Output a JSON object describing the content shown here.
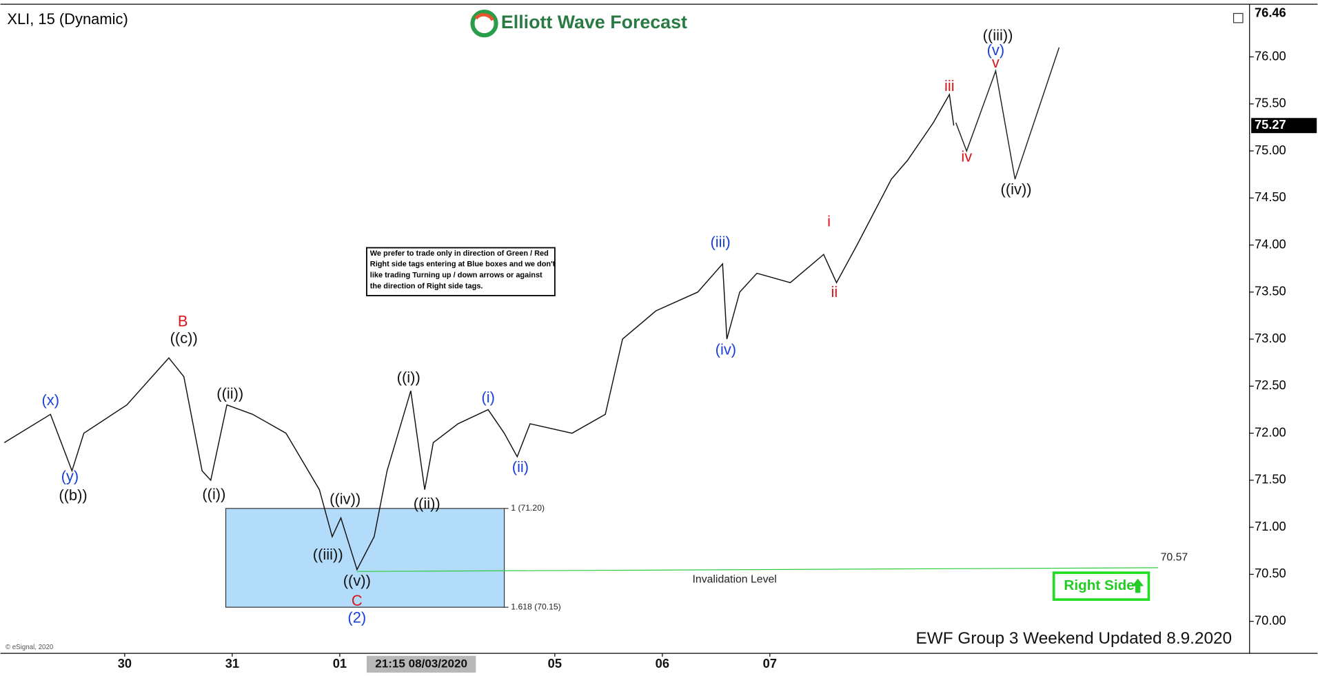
{
  "chart_data": {
    "type": "line",
    "title": "XLI, 15 (Dynamic)",
    "brand": "Elliott Wave Forecast",
    "xlim": [
      -1.156,
      10.461
    ],
    "ylim": [
      69.66,
      76.56
    ],
    "xticks": [
      {
        "value": 0,
        "label": "30"
      },
      {
        "value": 1,
        "label": "31"
      },
      {
        "value": 2,
        "label": "01"
      },
      {
        "value": 4,
        "label": "05"
      },
      {
        "value": 5,
        "label": "06"
      },
      {
        "value": 6,
        "label": "07"
      }
    ],
    "yticks": [
      {
        "value": 70,
        "label": "70.00"
      },
      {
        "value": 70.5,
        "label": "70.50"
      },
      {
        "value": 71,
        "label": "71.00"
      },
      {
        "value": 71.5,
        "label": "71.50"
      },
      {
        "value": 72,
        "label": "72.00"
      },
      {
        "value": 72.5,
        "label": "72.50"
      },
      {
        "value": 73,
        "label": "73.00"
      },
      {
        "value": 73.5,
        "label": "73.50"
      },
      {
        "value": 74,
        "label": "74.00"
      },
      {
        "value": 74.5,
        "label": "74.50"
      },
      {
        "value": 75,
        "label": "75.00"
      },
      {
        "value": 75.5,
        "label": "75.50"
      },
      {
        "value": 76,
        "label": "76.00"
      }
    ],
    "axis_markers": [
      76.46,
      75.27
    ],
    "series": [
      {
        "color": "#111111",
        "x": [
          -1.12,
          -0.69,
          -0.49,
          -0.38,
          0.02,
          0.41,
          0.55,
          0.72,
          0.8,
          0.95,
          1.19,
          1.5,
          1.81,
          1.93,
          2.01,
          2.16,
          2.32,
          2.44,
          2.66,
          2.79,
          2.87,
          3.1,
          3.38,
          3.53,
          3.65,
          3.77,
          4.16,
          4.47,
          4.63,
          4.94,
          5.33,
          5.56,
          5.6,
          5.72,
          5.88,
          6.19,
          6.5,
          6.62,
          6.81,
          7.13,
          7.28,
          7.52,
          7.67,
          7.71
        ],
        "values": [
          71.9,
          72.2,
          71.6,
          72.0,
          72.3,
          72.8,
          72.6,
          71.6,
          71.5,
          72.3,
          72.2,
          72.0,
          71.4,
          70.9,
          71.1,
          70.55,
          70.9,
          71.6,
          72.45,
          71.4,
          71.9,
          72.1,
          72.25,
          72.0,
          71.75,
          72.1,
          72.0,
          72.2,
          73.0,
          73.3,
          73.5,
          73.8,
          73.0,
          73.5,
          73.7,
          73.6,
          73.9,
          73.6,
          74.0,
          74.7,
          74.9,
          75.3,
          75.6,
          75.27
        ]
      },
      {
        "color": "#222222",
        "x": [
          7.73,
          7.83,
          8.1,
          8.28,
          8.69
        ],
        "values": [
          75.3,
          75.0,
          75.85,
          74.7,
          76.1
        ]
      }
    ],
    "target_box": {
      "x": [
        0.94,
        3.53
      ],
      "levels": [
        71.2,
        70.15
      ],
      "labels": [
        "1 (71.20)",
        "1.618 (70.15)"
      ],
      "color": "#b3dcfa"
    },
    "invalidation": {
      "label": "Invalidation Level",
      "x": [
        2.16,
        9.61
      ],
      "values": [
        70.53,
        70.57
      ],
      "color": "#2ecc40"
    },
    "annotations": [
      {
        "text": "(x)",
        "color": "#1a3fd6",
        "x": -0.69,
        "y": 72.34
      },
      {
        "text": "(y)",
        "color": "#1a3fd6",
        "x": -0.51,
        "y": 71.53
      },
      {
        "text": "((b))",
        "color": "#111111",
        "x": -0.48,
        "y": 71.33
      },
      {
        "text": "B",
        "color": "#d9141b",
        "x": 0.54,
        "y": 73.18
      },
      {
        "text": "((c))",
        "color": "#111111",
        "x": 0.55,
        "y": 73.0
      },
      {
        "text": "((ii))",
        "color": "#111111",
        "x": 0.98,
        "y": 72.41
      },
      {
        "text": "((i))",
        "color": "#111111",
        "x": 0.83,
        "y": 71.34
      },
      {
        "text": "((iv))",
        "color": "#111111",
        "x": 2.05,
        "y": 71.29
      },
      {
        "text": "((iii))",
        "color": "#111111",
        "x": 1.89,
        "y": 70.7
      },
      {
        "text": "((v))",
        "color": "#111111",
        "x": 2.16,
        "y": 70.42
      },
      {
        "text": "C",
        "color": "#d9141b",
        "x": 2.16,
        "y": 70.21
      },
      {
        "text": "(2)",
        "color": "#1a3fd6",
        "x": 2.16,
        "y": 70.03
      },
      {
        "text": "((i))",
        "color": "#111111",
        "x": 2.64,
        "y": 72.58
      },
      {
        "text": "((ii))",
        "color": "#111111",
        "x": 2.81,
        "y": 71.24
      },
      {
        "text": "(i)",
        "color": "#1a3fd6",
        "x": 3.38,
        "y": 72.37
      },
      {
        "text": "(ii)",
        "color": "#1a3fd6",
        "x": 3.68,
        "y": 71.63
      },
      {
        "text": "(iii)",
        "color": "#1a3fd6",
        "x": 5.54,
        "y": 74.02
      },
      {
        "text": "(iv)",
        "color": "#1a3fd6",
        "x": 5.59,
        "y": 72.88
      },
      {
        "text": "i",
        "color": "#d9141b",
        "x": 6.55,
        "y": 74.24
      },
      {
        "text": "ii",
        "color": "#d9141b",
        "x": 6.6,
        "y": 73.49
      },
      {
        "text": "iii",
        "color": "#d9141b",
        "x": 7.67,
        "y": 75.68
      },
      {
        "text": "iv",
        "color": "#d9141b",
        "x": 7.83,
        "y": 74.93
      },
      {
        "text": "v",
        "color": "#d9141b",
        "x": 8.1,
        "y": 75.93
      },
      {
        "text": "(v)",
        "color": "#1a3fd6",
        "x": 8.1,
        "y": 76.06
      },
      {
        "text": "((iii))",
        "color": "#111111",
        "x": 8.12,
        "y": 76.22
      },
      {
        "text": "((iv))",
        "color": "#111111",
        "x": 8.29,
        "y": 74.58
      }
    ],
    "note": [
      "We prefer to trade only in direction of Green / Red",
      "Right side tags entering at Blue boxes and we don't",
      "like trading Turning up / down arrows or against",
      "the direction of Right side tags."
    ],
    "right_side": "Right Side",
    "footer": "EWF Group 3  Weekend Updated 8.9.2020",
    "copyright": "© eSignal, 2020",
    "cursor_date": "21:15 08/03/2020"
  }
}
